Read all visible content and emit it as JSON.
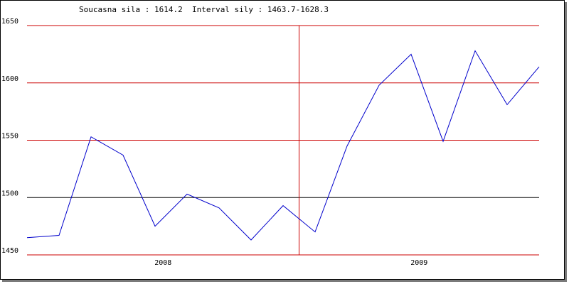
{
  "header": {
    "current_label": "Soucasna sila : 1614.2",
    "interval_label": "Interval sily : 1463.7-1628.3"
  },
  "chart_data": {
    "type": "line",
    "title": "",
    "xlabel": "",
    "ylabel": "",
    "ylim": [
      1450,
      1650
    ],
    "y_ticks": [
      "1450",
      "1500",
      "1550",
      "1600",
      "1650"
    ],
    "x_tick_labels": [
      "2008",
      "2009"
    ],
    "grid": true,
    "year_divider_after_index": 8,
    "series": [
      {
        "color": "#0000cc",
        "values": [
          1465,
          1467,
          1553,
          1537,
          1475,
          1503,
          1491,
          1463,
          1493,
          1470,
          1545,
          1598,
          1625,
          1549,
          1628,
          1581,
          1614
        ]
      }
    ],
    "colors": {
      "grid": "#cc0000",
      "reference_line": "#000000",
      "line": "#0000cc"
    },
    "reference_value": 1500
  }
}
